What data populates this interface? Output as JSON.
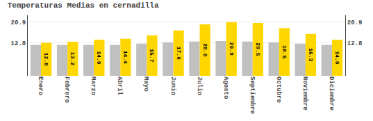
{
  "chart_data": {
    "type": "bar",
    "title": "Temperaturas Medias en cernadilla",
    "categories": [
      "Enero",
      "Febrero",
      "Marzo",
      "Abril",
      "Mayo",
      "Junio",
      "Julio",
      "Agosto",
      "Septiembre",
      "Octubre",
      "Noviembre",
      "Diciembre"
    ],
    "series": [
      {
        "color": "#C0C0C0",
        "values": [
          12.0,
          12.0,
          12.0,
          12.0,
          12.5,
          13.0,
          13.3,
          13.5,
          13.3,
          13.0,
          12.5,
          12.0
        ]
      },
      {
        "color": "#FFD700",
        "data_labels": true,
        "values": [
          12.8,
          13.2,
          14.0,
          14.4,
          15.7,
          17.6,
          20.0,
          20.9,
          20.5,
          18.5,
          16.3,
          14.0
        ],
        "value_labels": [
          "12.8",
          "13.2",
          "14.0",
          "14.4",
          "15.7",
          "17.6",
          "20.0",
          "20.9",
          "20.5",
          "18.5",
          "16.3",
          "14.0"
        ]
      }
    ],
    "ylim": [
      0,
      23.5
    ],
    "yticks": [
      12.8,
      20.9
    ],
    "y2lim": [
      0,
      23.5
    ],
    "y2ticks": [
      12.8,
      20.9
    ],
    "grid": true
  }
}
